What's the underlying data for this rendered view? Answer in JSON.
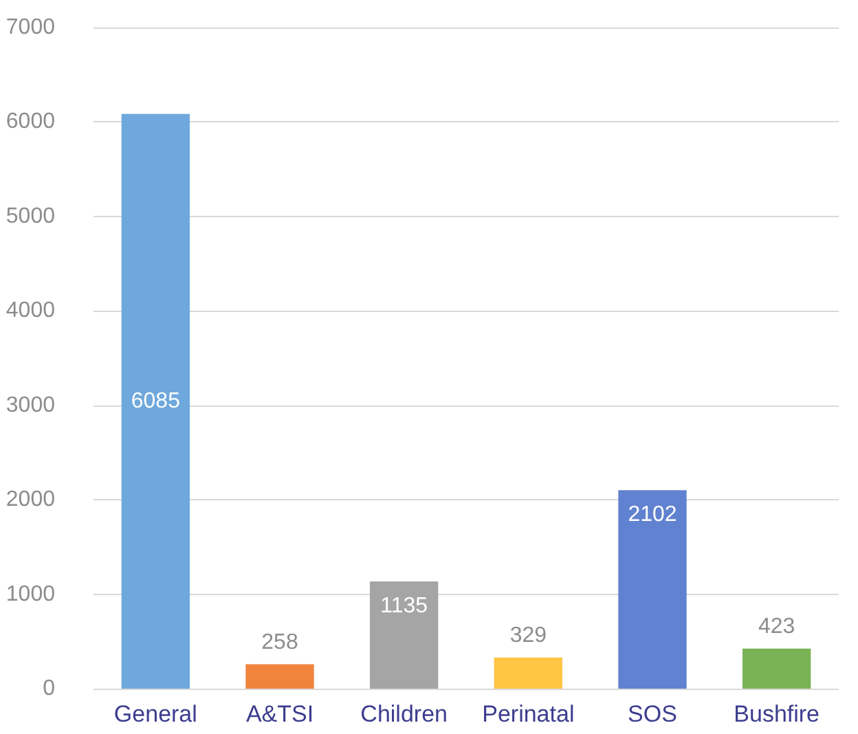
{
  "chart_data": {
    "type": "bar",
    "categories": [
      "General",
      "A&TSI",
      "Children",
      "Perinatal",
      "SOS",
      "Bushfire"
    ],
    "values": [
      6085,
      258,
      1135,
      329,
      2102,
      423
    ],
    "colors": [
      "#6fa8dc",
      "#f0843c",
      "#a5a5a5",
      "#ffc544",
      "#6182d0",
      "#7ab355"
    ],
    "ylim": [
      0,
      7000
    ],
    "yticks": [
      0,
      1000,
      2000,
      3000,
      4000,
      5000,
      6000,
      7000
    ],
    "grid": "y",
    "data_labels": true
  }
}
